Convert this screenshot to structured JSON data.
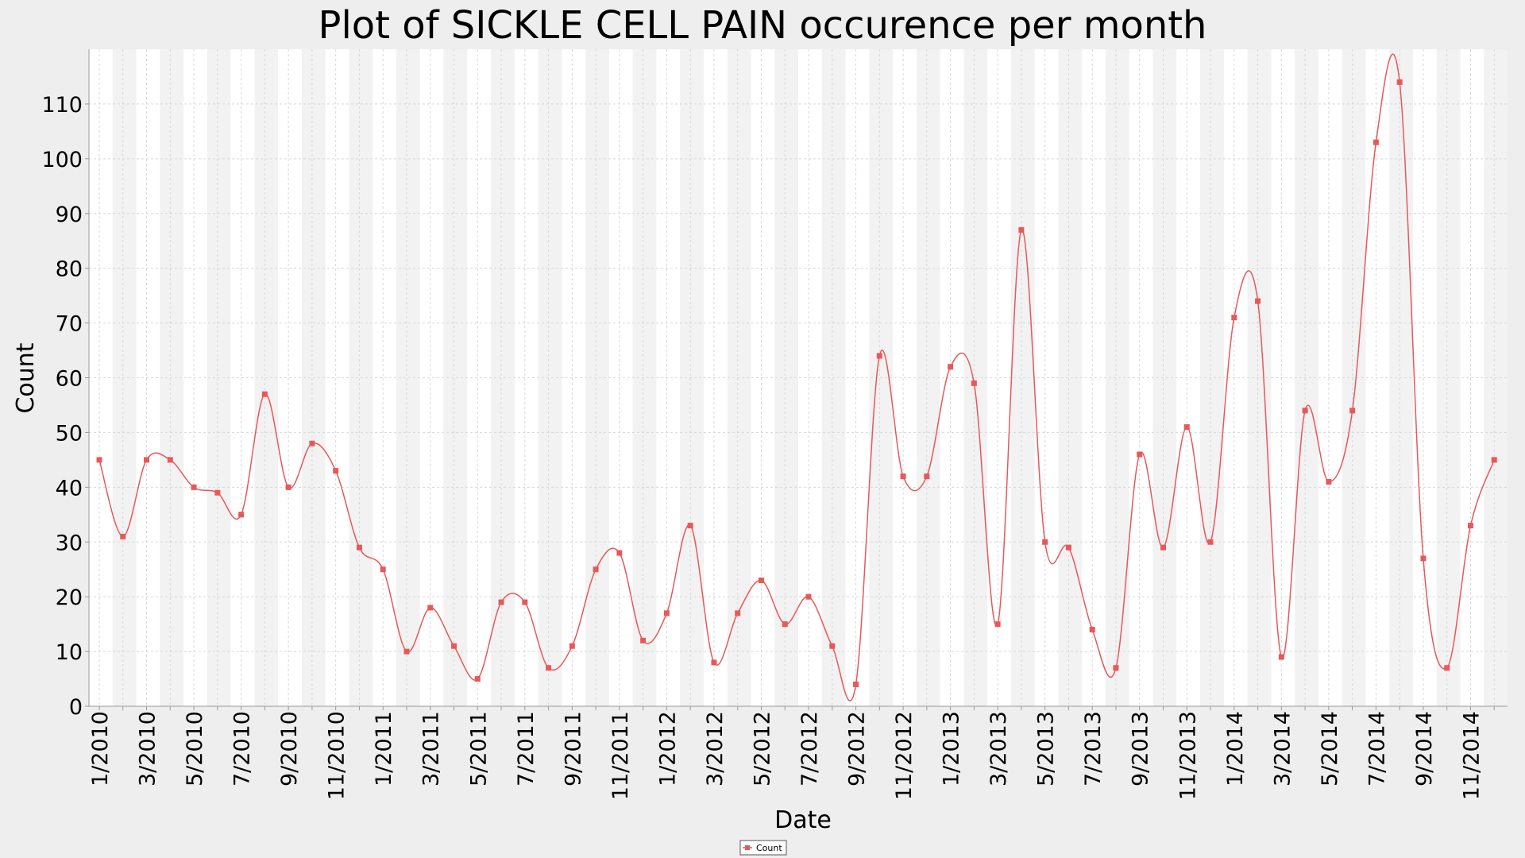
{
  "chart_data": {
    "type": "line",
    "title": "Plot of SICKLE CELL PAIN occurence per month",
    "xlabel": "Date",
    "ylabel": "Count",
    "ylim": [
      0,
      120
    ],
    "yticks": [
      "0",
      "10",
      "20",
      "30",
      "40",
      "50",
      "60",
      "70",
      "80",
      "90",
      "100",
      "110"
    ],
    "xticks": [
      "1/2010",
      "3/2010",
      "5/2010",
      "7/2010",
      "9/2010",
      "11/2010",
      "1/2011",
      "3/2011",
      "5/2011",
      "7/2011",
      "9/2011",
      "11/2011",
      "1/2012",
      "3/2012",
      "5/2012",
      "7/2012",
      "9/2012",
      "11/2012",
      "1/2013",
      "3/2013",
      "5/2013",
      "7/2013",
      "9/2013",
      "11/2013",
      "1/2014",
      "3/2014",
      "5/2014",
      "7/2014",
      "9/2014",
      "11/2014"
    ],
    "x": [
      "1/2010",
      "2/2010",
      "3/2010",
      "4/2010",
      "5/2010",
      "6/2010",
      "7/2010",
      "8/2010",
      "9/2010",
      "10/2010",
      "11/2010",
      "12/2010",
      "1/2011",
      "2/2011",
      "3/2011",
      "4/2011",
      "5/2011",
      "6/2011",
      "7/2011",
      "8/2011",
      "9/2011",
      "10/2011",
      "11/2011",
      "12/2011",
      "1/2012",
      "2/2012",
      "3/2012",
      "4/2012",
      "5/2012",
      "6/2012",
      "7/2012",
      "8/2012",
      "9/2012",
      "10/2012",
      "11/2012",
      "12/2012",
      "1/2013",
      "2/2013",
      "3/2013",
      "4/2013",
      "5/2013",
      "6/2013",
      "7/2013",
      "8/2013",
      "9/2013",
      "10/2013",
      "11/2013",
      "12/2013",
      "1/2014",
      "2/2014",
      "3/2014",
      "4/2014",
      "5/2014",
      "6/2014",
      "7/2014",
      "8/2014",
      "9/2014",
      "10/2014",
      "11/2014",
      "12/2014"
    ],
    "series": [
      {
        "name": "Count",
        "color": "#e8585a",
        "values": [
          45,
          31,
          45,
          45,
          40,
          39,
          35,
          57,
          40,
          48,
          43,
          29,
          25,
          10,
          18,
          11,
          5,
          19,
          19,
          7,
          11,
          25,
          28,
          12,
          17,
          33,
          8,
          17,
          23,
          15,
          20,
          11,
          4,
          64,
          42,
          42,
          62,
          59,
          15,
          87,
          30,
          29,
          14,
          7,
          46,
          29,
          51,
          30,
          71,
          74,
          9,
          54,
          41,
          54,
          103,
          114,
          27,
          7,
          33,
          45
        ]
      }
    ],
    "grid": true,
    "legend": "bottom-center",
    "colors": {
      "background": "#eeeeee",
      "plot_light": "#ffffff",
      "plot_band": "#f2f2f2",
      "grid": "#d8d8d8",
      "series": "#e8585a"
    }
  }
}
